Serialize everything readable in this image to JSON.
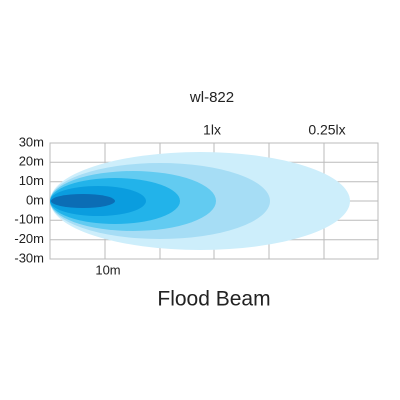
{
  "title": "wl-822",
  "y_labels": [
    "30m",
    "20m",
    "10m",
    "0m",
    "-10m",
    "-20m",
    "-30m"
  ],
  "x_label": "10m",
  "lux_labels": [
    "1lx",
    "0.25lx"
  ],
  "caption": "Flood Beam"
}
